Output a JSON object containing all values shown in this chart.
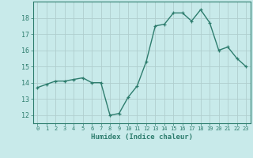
{
  "x": [
    0,
    1,
    2,
    3,
    4,
    5,
    6,
    7,
    8,
    9,
    10,
    11,
    12,
    13,
    14,
    15,
    16,
    17,
    18,
    19,
    20,
    21,
    22,
    23
  ],
  "y": [
    13.7,
    13.9,
    14.1,
    14.1,
    14.2,
    14.3,
    14.0,
    14.0,
    12.0,
    12.1,
    13.1,
    13.8,
    15.3,
    17.5,
    17.6,
    18.3,
    18.3,
    17.8,
    18.5,
    17.7,
    16.0,
    16.2,
    15.5,
    15.0
  ],
  "line_color": "#2e7d6e",
  "marker": "+",
  "marker_size": 3,
  "bg_color": "#c8eaea",
  "grid_color": "#b0cece",
  "xlabel": "Humidex (Indice chaleur)",
  "ylabel_ticks": [
    12,
    13,
    14,
    15,
    16,
    17,
    18
  ],
  "ylim": [
    11.5,
    19.0
  ],
  "xlim": [
    -0.5,
    23.5
  ],
  "tick_label_color": "#2e7d6e",
  "axis_color": "#2e7d6e",
  "xlabel_color": "#2e7d6e",
  "linewidth": 1.0
}
